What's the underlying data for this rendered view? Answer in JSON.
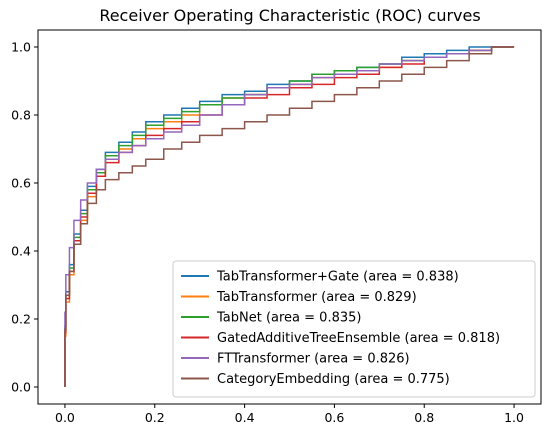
{
  "chart_data": {
    "type": "line",
    "title": "Receiver Operating Characteristic (ROC) curves",
    "xlabel": "",
    "ylabel": "",
    "xlim": [
      -0.06,
      1.06
    ],
    "ylim": [
      -0.05,
      1.05
    ],
    "xticks": [
      0.0,
      0.2,
      0.4,
      0.6,
      0.8,
      1.0
    ],
    "yticks": [
      0.0,
      0.2,
      0.4,
      0.6,
      0.8,
      1.0
    ],
    "xtick_labels": [
      "0.0",
      "0.2",
      "0.4",
      "0.6",
      "0.8",
      "1.0"
    ],
    "ytick_labels": [
      "0.0",
      "0.2",
      "0.4",
      "0.6",
      "0.8",
      "1.0"
    ],
    "grid": false,
    "legend_position": "bottom-right",
    "series": [
      {
        "name": "TabTransformer+Gate (area = 0.838)",
        "color": "#1f77b4",
        "x": [
          0,
          0.002,
          0.01,
          0.02,
          0.035,
          0.05,
          0.07,
          0.09,
          0.12,
          0.15,
          0.18,
          0.22,
          0.26,
          0.3,
          0.35,
          0.4,
          0.45,
          0.5,
          0.55,
          0.6,
          0.65,
          0.7,
          0.75,
          0.8,
          0.85,
          0.9,
          0.95,
          1.0
        ],
        "y": [
          0,
          0.18,
          0.28,
          0.36,
          0.45,
          0.52,
          0.59,
          0.64,
          0.69,
          0.72,
          0.75,
          0.78,
          0.8,
          0.82,
          0.84,
          0.86,
          0.87,
          0.89,
          0.9,
          0.92,
          0.93,
          0.94,
          0.95,
          0.97,
          0.98,
          0.99,
          1.0,
          1.0
        ]
      },
      {
        "name": "TabTransformer (area = 0.829)",
        "color": "#ff7f0e",
        "x": [
          0,
          0.002,
          0.01,
          0.02,
          0.035,
          0.05,
          0.07,
          0.09,
          0.12,
          0.15,
          0.18,
          0.22,
          0.26,
          0.3,
          0.35,
          0.4,
          0.45,
          0.5,
          0.55,
          0.6,
          0.65,
          0.7,
          0.75,
          0.8,
          0.85,
          0.9,
          0.95,
          1.0
        ],
        "y": [
          0,
          0.15,
          0.25,
          0.33,
          0.42,
          0.49,
          0.56,
          0.62,
          0.67,
          0.7,
          0.73,
          0.76,
          0.78,
          0.8,
          0.83,
          0.85,
          0.86,
          0.88,
          0.89,
          0.91,
          0.92,
          0.93,
          0.94,
          0.96,
          0.97,
          0.98,
          0.99,
          1.0
        ]
      },
      {
        "name": "TabNet (area = 0.835)",
        "color": "#2ca02c",
        "x": [
          0,
          0.002,
          0.01,
          0.02,
          0.035,
          0.05,
          0.07,
          0.09,
          0.12,
          0.15,
          0.18,
          0.22,
          0.26,
          0.3,
          0.35,
          0.4,
          0.45,
          0.5,
          0.55,
          0.6,
          0.65,
          0.7,
          0.75,
          0.8,
          0.85,
          0.9,
          0.95,
          1.0
        ],
        "y": [
          0,
          0.17,
          0.27,
          0.35,
          0.44,
          0.51,
          0.58,
          0.63,
          0.68,
          0.71,
          0.74,
          0.77,
          0.79,
          0.81,
          0.83,
          0.85,
          0.86,
          0.88,
          0.9,
          0.92,
          0.93,
          0.94,
          0.95,
          0.96,
          0.97,
          0.98,
          0.99,
          1.0
        ]
      },
      {
        "name": "GatedAdditiveTreeEnsemble (area = 0.818)",
        "color": "#d62728",
        "x": [
          0,
          0.002,
          0.01,
          0.02,
          0.035,
          0.05,
          0.07,
          0.09,
          0.12,
          0.15,
          0.18,
          0.22,
          0.26,
          0.3,
          0.35,
          0.4,
          0.45,
          0.5,
          0.55,
          0.6,
          0.65,
          0.7,
          0.75,
          0.8,
          0.85,
          0.9,
          0.95,
          1.0
        ],
        "y": [
          0,
          0.16,
          0.26,
          0.34,
          0.43,
          0.5,
          0.57,
          0.62,
          0.66,
          0.69,
          0.71,
          0.74,
          0.76,
          0.78,
          0.8,
          0.83,
          0.85,
          0.86,
          0.88,
          0.89,
          0.91,
          0.92,
          0.94,
          0.95,
          0.97,
          0.98,
          0.99,
          1.0
        ]
      },
      {
        "name": "FTTransformer (area = 0.826)",
        "color": "#9467bd",
        "x": [
          0,
          0.002,
          0.01,
          0.02,
          0.035,
          0.05,
          0.07,
          0.09,
          0.12,
          0.15,
          0.18,
          0.22,
          0.26,
          0.3,
          0.35,
          0.4,
          0.45,
          0.5,
          0.55,
          0.6,
          0.65,
          0.7,
          0.75,
          0.8,
          0.85,
          0.9,
          0.95,
          1.0
        ],
        "y": [
          0,
          0.22,
          0.33,
          0.41,
          0.49,
          0.55,
          0.6,
          0.64,
          0.67,
          0.69,
          0.71,
          0.73,
          0.75,
          0.77,
          0.8,
          0.83,
          0.86,
          0.88,
          0.89,
          0.91,
          0.92,
          0.93,
          0.95,
          0.96,
          0.97,
          0.98,
          0.99,
          1.0
        ]
      },
      {
        "name": "CategoryEmbedding (area = 0.775)",
        "color": "#8c564b",
        "x": [
          0,
          0.002,
          0.01,
          0.02,
          0.035,
          0.05,
          0.07,
          0.09,
          0.12,
          0.15,
          0.18,
          0.22,
          0.26,
          0.3,
          0.35,
          0.4,
          0.45,
          0.5,
          0.55,
          0.6,
          0.65,
          0.7,
          0.75,
          0.8,
          0.85,
          0.9,
          0.95,
          1.0
        ],
        "y": [
          0,
          0.17,
          0.27,
          0.34,
          0.42,
          0.48,
          0.54,
          0.58,
          0.61,
          0.63,
          0.65,
          0.67,
          0.7,
          0.72,
          0.74,
          0.76,
          0.78,
          0.8,
          0.82,
          0.84,
          0.86,
          0.88,
          0.9,
          0.92,
          0.94,
          0.96,
          0.98,
          1.0
        ]
      }
    ]
  }
}
